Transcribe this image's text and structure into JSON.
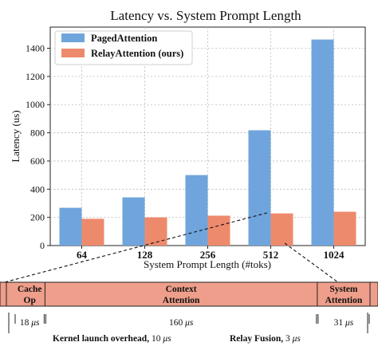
{
  "chart_data": {
    "type": "bar",
    "title": "Latency vs. System Prompt Length",
    "xlabel": "System Prompt Length (#toks)",
    "ylabel": "Latency (us)",
    "categories": [
      "64",
      "128",
      "256",
      "512",
      "1024"
    ],
    "series": [
      {
        "name": "PagedAttention",
        "values": [
          268,
          342,
          500,
          818,
          1462
        ],
        "color": "#6fa5dc"
      },
      {
        "name": "RelayAttention (ours)",
        "values": [
          190,
          200,
          212,
          228,
          240
        ],
        "color": "#ee8a6c"
      }
    ],
    "ylim": [
      0,
      1550
    ],
    "yticks": [
      0,
      200,
      400,
      600,
      800,
      1000,
      1200,
      1400
    ],
    "grid": true,
    "legend_position": "top-left"
  },
  "breakdown": {
    "segments": [
      {
        "label_line1": "Cache",
        "label_line2": "Op",
        "time": "18",
        "share": 0.0857
      },
      {
        "label_line1": "Context",
        "label_line2": "Attention",
        "time": "160",
        "share": 0.7619
      },
      {
        "label_line1": "System",
        "label_line2": "Attention",
        "time": "31",
        "share": 0.1476
      }
    ],
    "time_unit": "μs",
    "note_kernel_label": "Kernel launch overhead,",
    "note_kernel_value": "10",
    "note_fusion_label": "Relay Fusion,",
    "note_fusion_value": "3",
    "fill_color": "#ee9e8a"
  }
}
